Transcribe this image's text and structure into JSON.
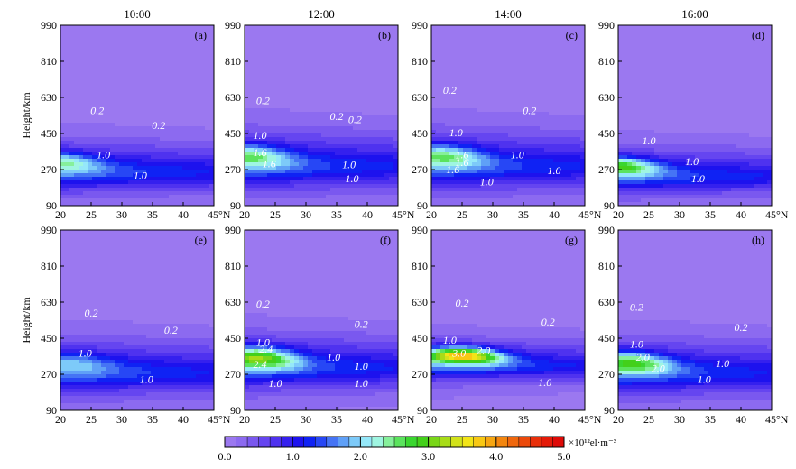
{
  "chart_data": {
    "type": "heatmap",
    "time_titles": [
      "10:00",
      "12:00",
      "14:00",
      "16:00"
    ],
    "ylabel": "Height/km",
    "y_ticks": [
      "990",
      "810",
      "630",
      "450",
      "270",
      "90"
    ],
    "x_ticks": [
      "20",
      "25",
      "30",
      "35",
      "40",
      "45°N"
    ],
    "xlim": [
      20,
      45
    ],
    "ylim": [
      90,
      990
    ],
    "panels": [
      {
        "label": "(a)",
        "peak_lat": 20,
        "peak_height": 310,
        "peak_value": 1.8,
        "spread_height": 55,
        "contour_labels": [
          {
            "text": "0.2",
            "lat": 26,
            "h": 565
          },
          {
            "text": "0.2",
            "lat": 36,
            "h": 490
          },
          {
            "text": "1.0",
            "lat": 27,
            "h": 345
          },
          {
            "text": "1.0",
            "lat": 33,
            "h": 240
          }
        ]
      },
      {
        "label": "(b)",
        "peak_lat": 21,
        "peak_height": 340,
        "peak_value": 1.9,
        "spread_height": 65,
        "contour_labels": [
          {
            "text": "0.2",
            "lat": 23,
            "h": 615
          },
          {
            "text": "0.2",
            "lat": 35,
            "h": 535
          },
          {
            "text": "0.2",
            "lat": 38,
            "h": 520
          },
          {
            "text": "1.0",
            "lat": 22.5,
            "h": 440
          },
          {
            "text": "1.6",
            "lat": 22.5,
            "h": 355
          },
          {
            "text": "1.6",
            "lat": 24,
            "h": 300
          },
          {
            "text": "1.0",
            "lat": 37,
            "h": 295
          },
          {
            "text": "1.0",
            "lat": 37.5,
            "h": 225
          }
        ]
      },
      {
        "label": "(c)",
        "peak_lat": 22,
        "peak_height": 340,
        "peak_value": 1.9,
        "spread_height": 65,
        "contour_labels": [
          {
            "text": "0.2",
            "lat": 23,
            "h": 665
          },
          {
            "text": "0.2",
            "lat": 36,
            "h": 565
          },
          {
            "text": "1.0",
            "lat": 24,
            "h": 455
          },
          {
            "text": "1.6",
            "lat": 25,
            "h": 345
          },
          {
            "text": "1.6",
            "lat": 25,
            "h": 305
          },
          {
            "text": "1.6",
            "lat": 23.5,
            "h": 270
          },
          {
            "text": "1.0",
            "lat": 34,
            "h": 345
          },
          {
            "text": "1.0",
            "lat": 29,
            "h": 210
          },
          {
            "text": "1.0",
            "lat": 40,
            "h": 265
          }
        ]
      },
      {
        "label": "(d)",
        "peak_lat": 20,
        "peak_height": 290,
        "peak_value": 2.4,
        "spread_height": 50,
        "contour_labels": [
          {
            "text": "1.0",
            "lat": 25,
            "h": 415
          },
          {
            "text": "1.0",
            "lat": 32,
            "h": 310
          },
          {
            "text": "1.0",
            "lat": 33,
            "h": 225
          }
        ]
      },
      {
        "label": "(e)",
        "peak_lat": 22,
        "peak_height": 330,
        "peak_value": 1.3,
        "spread_height": 60,
        "contour_labels": [
          {
            "text": "0.2",
            "lat": 25,
            "h": 575
          },
          {
            "text": "0.2",
            "lat": 38,
            "h": 490
          },
          {
            "text": "1.0",
            "lat": 24,
            "h": 375
          },
          {
            "text": "1.0",
            "lat": 34,
            "h": 245
          }
        ]
      },
      {
        "label": "(f)",
        "peak_lat": 22,
        "peak_height": 355,
        "peak_value": 2.6,
        "spread_height": 60,
        "contour_labels": [
          {
            "text": "0.2",
            "lat": 23,
            "h": 620
          },
          {
            "text": "0.2",
            "lat": 39,
            "h": 520
          },
          {
            "text": "1.0",
            "lat": 23,
            "h": 430
          },
          {
            "text": "2.4",
            "lat": 23.5,
            "h": 395
          },
          {
            "text": "2.4",
            "lat": 22.5,
            "h": 320
          },
          {
            "text": "1.0",
            "lat": 34.5,
            "h": 355
          },
          {
            "text": "1.0",
            "lat": 39,
            "h": 310
          },
          {
            "text": "1.0",
            "lat": 25,
            "h": 225
          },
          {
            "text": "1.0",
            "lat": 39,
            "h": 225
          }
        ]
      },
      {
        "label": "(g)",
        "peak_lat": 25,
        "peak_height": 365,
        "peak_value": 3.5,
        "spread_height": 45,
        "contour_labels": [
          {
            "text": "0.2",
            "lat": 25,
            "h": 625
          },
          {
            "text": "0.2",
            "lat": 39,
            "h": 530
          },
          {
            "text": "1.0",
            "lat": 23,
            "h": 440
          },
          {
            "text": "3.0",
            "lat": 24.5,
            "h": 375
          },
          {
            "text": "2.0",
            "lat": 28.5,
            "h": 390
          },
          {
            "text": "1.0",
            "lat": 38.5,
            "h": 230
          }
        ]
      },
      {
        "label": "(h)",
        "peak_lat": 22,
        "peak_height": 330,
        "peak_value": 2.3,
        "spread_height": 60,
        "contour_labels": [
          {
            "text": "0.2",
            "lat": 23,
            "h": 605
          },
          {
            "text": "0.2",
            "lat": 40,
            "h": 505
          },
          {
            "text": "1.0",
            "lat": 23,
            "h": 420
          },
          {
            "text": "2.0",
            "lat": 24,
            "h": 355
          },
          {
            "text": "2.0",
            "lat": 26.5,
            "h": 300
          },
          {
            "text": "1.0",
            "lat": 37,
            "h": 325
          },
          {
            "text": "1.0",
            "lat": 34,
            "h": 245
          }
        ]
      }
    ],
    "colorbar": {
      "ticks": [
        "0.0",
        "1.0",
        "2.0",
        "3.0",
        "4.0",
        "5.0"
      ],
      "unit": "×10¹²el·m⁻³",
      "colors": [
        "#9b78f0",
        "#8c6af0",
        "#7a58ef",
        "#6545f0",
        "#4f32ef",
        "#3520ee",
        "#1d12ee",
        "#0f22f4",
        "#2747f5",
        "#4574f5",
        "#5fa0f7",
        "#7dcaf9",
        "#95e8f9",
        "#9ff5e1",
        "#86f09b",
        "#5be35d",
        "#3ad62f",
        "#43d01a",
        "#79d618",
        "#a8dc17",
        "#d2e21a",
        "#f2e417",
        "#f8c814",
        "#f6a612",
        "#f3860f",
        "#ef670d",
        "#eb490b",
        "#e82f0a",
        "#e41a08",
        "#de0a07"
      ]
    },
    "colors": {
      "background": "#9b78f0",
      "band_levels": [
        "#8c6af0",
        "#7a58ef",
        "#6545f0",
        "#4f32ef",
        "#3520ee",
        "#1d12ee"
      ]
    }
  }
}
